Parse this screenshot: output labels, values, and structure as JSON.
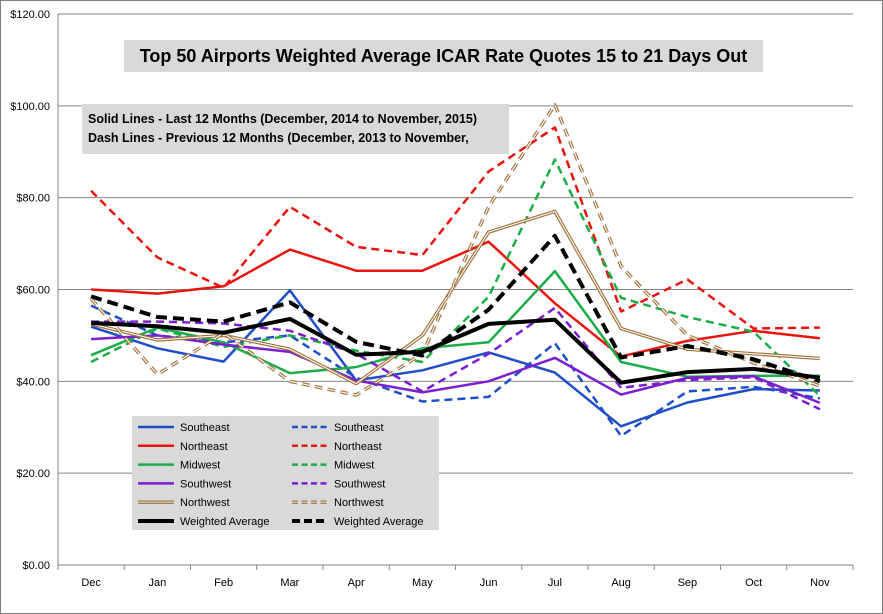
{
  "chart_data": {
    "type": "line",
    "title": "Top 50 Airports  Weighted Average ICAR Rate Quotes  15 to 21 Days Out",
    "annotation_lines": [
      "Solid Lines - Last 12 Months  (December, 2014 to November, 2015)",
      "Dash Lines - Previous 12 Months (December, 2013  to November,"
    ],
    "categories": [
      "Dec",
      "Jan",
      "Feb",
      "Mar",
      "Apr",
      "May",
      "Jun",
      "Jul",
      "Aug",
      "Sep",
      "Oct",
      "Nov"
    ],
    "ylim": [
      0,
      120
    ],
    "yticks": [
      0,
      20,
      40,
      60,
      80,
      100,
      120
    ],
    "ytick_labels": [
      "$0.00",
      "$20.00",
      "$40.00",
      "$60.00",
      "$80.00",
      "$100.00",
      "$120.00"
    ],
    "grid": true,
    "legend_position": "bottom-left",
    "series": [
      {
        "name": "Southeast",
        "style": "solid",
        "color": "#1f4ec8",
        "width": 2.5,
        "values": [
          51.9,
          47.2,
          44.3,
          59.8,
          40.2,
          42.4,
          46.3,
          41.9,
          30.2,
          35.4,
          38.3,
          38.0
        ]
      },
      {
        "name": "Southeast",
        "style": "dashed",
        "color": "#1f4ec8",
        "width": 2.5,
        "values": [
          56.5,
          50.0,
          48.5,
          50.0,
          40.8,
          35.6,
          36.6,
          48.3,
          28.1,
          37.8,
          38.8,
          36.3
        ]
      },
      {
        "name": "Northeast",
        "style": "solid",
        "color": "#e8150f",
        "width": 2.5,
        "values": [
          60.0,
          59.1,
          60.7,
          68.7,
          64.1,
          64.1,
          70.4,
          57.0,
          45.4,
          48.8,
          51.0,
          49.4
        ]
      },
      {
        "name": "Northeast",
        "style": "dashed",
        "color": "#e8150f",
        "width": 2.5,
        "values": [
          81.5,
          67.0,
          60.4,
          78.0,
          69.3,
          67.5,
          85.7,
          95.3,
          55.2,
          62.2,
          51.5,
          51.7
        ]
      },
      {
        "name": "Midwest",
        "style": "solid",
        "color": "#1cad4a",
        "width": 2.5,
        "values": [
          45.7,
          51.7,
          48.5,
          41.8,
          43.1,
          47.2,
          48.5,
          64.0,
          44.2,
          41.0,
          41.2,
          41.2
        ]
      },
      {
        "name": "Midwest",
        "style": "dashed",
        "color": "#1cad4a",
        "width": 2.5,
        "values": [
          44.2,
          51.5,
          47.5,
          50.0,
          46.7,
          44.2,
          58.4,
          88.3,
          58.2,
          54.0,
          50.8,
          36.8
        ]
      },
      {
        "name": "Southwest",
        "style": "solid",
        "color": "#7b1fd1",
        "width": 2.5,
        "values": [
          49.2,
          50.0,
          48.0,
          46.4,
          40.2,
          37.6,
          40.0,
          45.1,
          37.1,
          40.8,
          41.1,
          35.3
        ]
      },
      {
        "name": "Southwest",
        "style": "dashed",
        "color": "#7b1fd1",
        "width": 2.5,
        "values": [
          53.0,
          53.0,
          52.6,
          51.0,
          46.0,
          37.8,
          46.0,
          56.0,
          38.6,
          40.3,
          40.9,
          33.9
        ]
      },
      {
        "name": "Northwest",
        "style": "solid",
        "color": "#a0713a",
        "width": 1.3,
        "double": true,
        "values": [
          52.5,
          49.0,
          50.0,
          47.0,
          39.5,
          50.0,
          72.5,
          77.0,
          51.5,
          47.0,
          46.0,
          45.0
        ]
      },
      {
        "name": "Northwest",
        "style": "dashed",
        "color": "#a0713a",
        "width": 1.3,
        "double": true,
        "values": [
          58.0,
          41.5,
          50.5,
          40.0,
          37.0,
          46.0,
          78.0,
          100.2,
          65.0,
          50.0,
          44.0,
          39.0
        ]
      },
      {
        "name": "Weighted Average",
        "style": "solid",
        "color": "#000000",
        "width": 4,
        "values": [
          52.7,
          52.0,
          50.6,
          53.6,
          45.8,
          46.4,
          52.5,
          53.4,
          39.7,
          42.0,
          42.7,
          40.8
        ]
      },
      {
        "name": "Weighted Average",
        "style": "dashed",
        "color": "#000000",
        "width": 4,
        "values": [
          58.5,
          54.0,
          53.0,
          57.2,
          48.6,
          45.6,
          55.6,
          71.7,
          45.2,
          47.7,
          44.8,
          40.0
        ]
      }
    ]
  }
}
